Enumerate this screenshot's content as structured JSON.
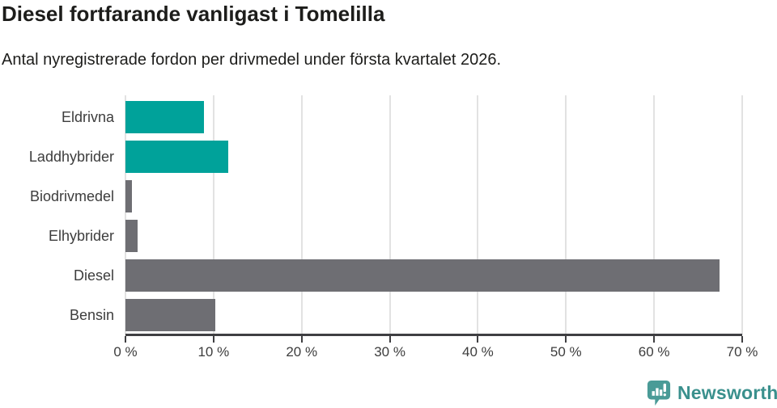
{
  "header": {
    "title": "Diesel fortfarande vanligast i Tomelilla",
    "subtitle": "Antal nyregistrerade fordon per drivmedel under första kvartalet 2026."
  },
  "chart_data": {
    "type": "bar",
    "orientation": "horizontal",
    "title": "Diesel fortfarande vanligast i Tomelilla",
    "subtitle": "Antal nyregistrerade fordon per drivmedel under första kvartalet 2026.",
    "categories": [
      "Eldrivna",
      "Laddhybrider",
      "Biodrivmedel",
      "Elhybrider",
      "Diesel",
      "Bensin"
    ],
    "values": [
      8.9,
      11.7,
      0.7,
      1.4,
      67.4,
      10.2
    ],
    "unit": "%",
    "xlim": [
      0,
      70
    ],
    "x_ticks": [
      0,
      10,
      20,
      30,
      40,
      50,
      60,
      70
    ],
    "x_tick_labels": [
      "0 %",
      "10 %",
      "20 %",
      "30 %",
      "40 %",
      "50 %",
      "60 %",
      "70 %"
    ],
    "bar_colors": [
      "#00a29a",
      "#00a29a",
      "#6e6e73",
      "#6e6e73",
      "#6e6e73",
      "#6e6e73"
    ],
    "grid": true,
    "legend": null
  },
  "colors": {
    "teal": "#00a29a",
    "gray": "#6e6e73",
    "gridline": "#e2e2e2",
    "axis": "#3f3f42",
    "text": "#1d1d1b",
    "label_text": "#3d3d3d",
    "logo_text": "#3a908d",
    "logo_icon": "#4a9b97"
  },
  "footer": {
    "brand": "Newsworthy"
  }
}
